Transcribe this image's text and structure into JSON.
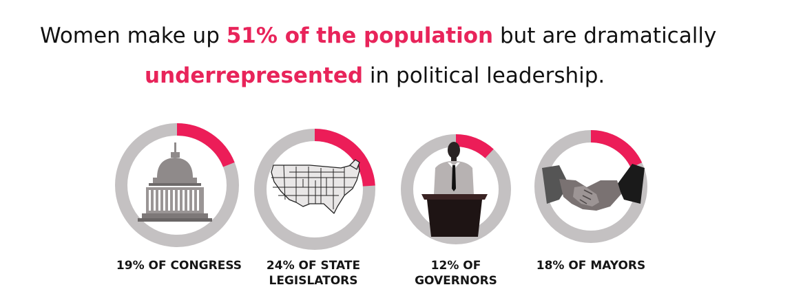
{
  "headline": {
    "part1": "Women make up ",
    "highlight1": "51% of the population",
    "part2": " but are dramatically",
    "highlight2": "underrepresented",
    "part3": " in political leadership."
  },
  "colors": {
    "highlight": "#e8245a",
    "ring_base": "#c4c1c2",
    "ring_value": "#ec1d58",
    "text": "#111111"
  },
  "chart_data": {
    "type": "pie",
    "subtype": "donut",
    "series": [
      {
        "category": "Congress",
        "value": 19,
        "caption_line1": "19% OF CONGRESS",
        "caption_line2": "",
        "icon": "capitol-dome-icon"
      },
      {
        "category": "State Legislators",
        "value": 24,
        "caption_line1": "24% OF STATE",
        "caption_line2": "LEGISLATORS",
        "icon": "us-map-icon"
      },
      {
        "category": "Governors",
        "value": 12,
        "caption_line1": "12% OF",
        "caption_line2": "GOVERNORS",
        "icon": "podium-speaker-icon"
      },
      {
        "category": "Mayors",
        "value": 18,
        "caption_line1": "18% OF MAYORS",
        "caption_line2": "",
        "icon": "handshake-icon"
      }
    ],
    "max": 100
  }
}
